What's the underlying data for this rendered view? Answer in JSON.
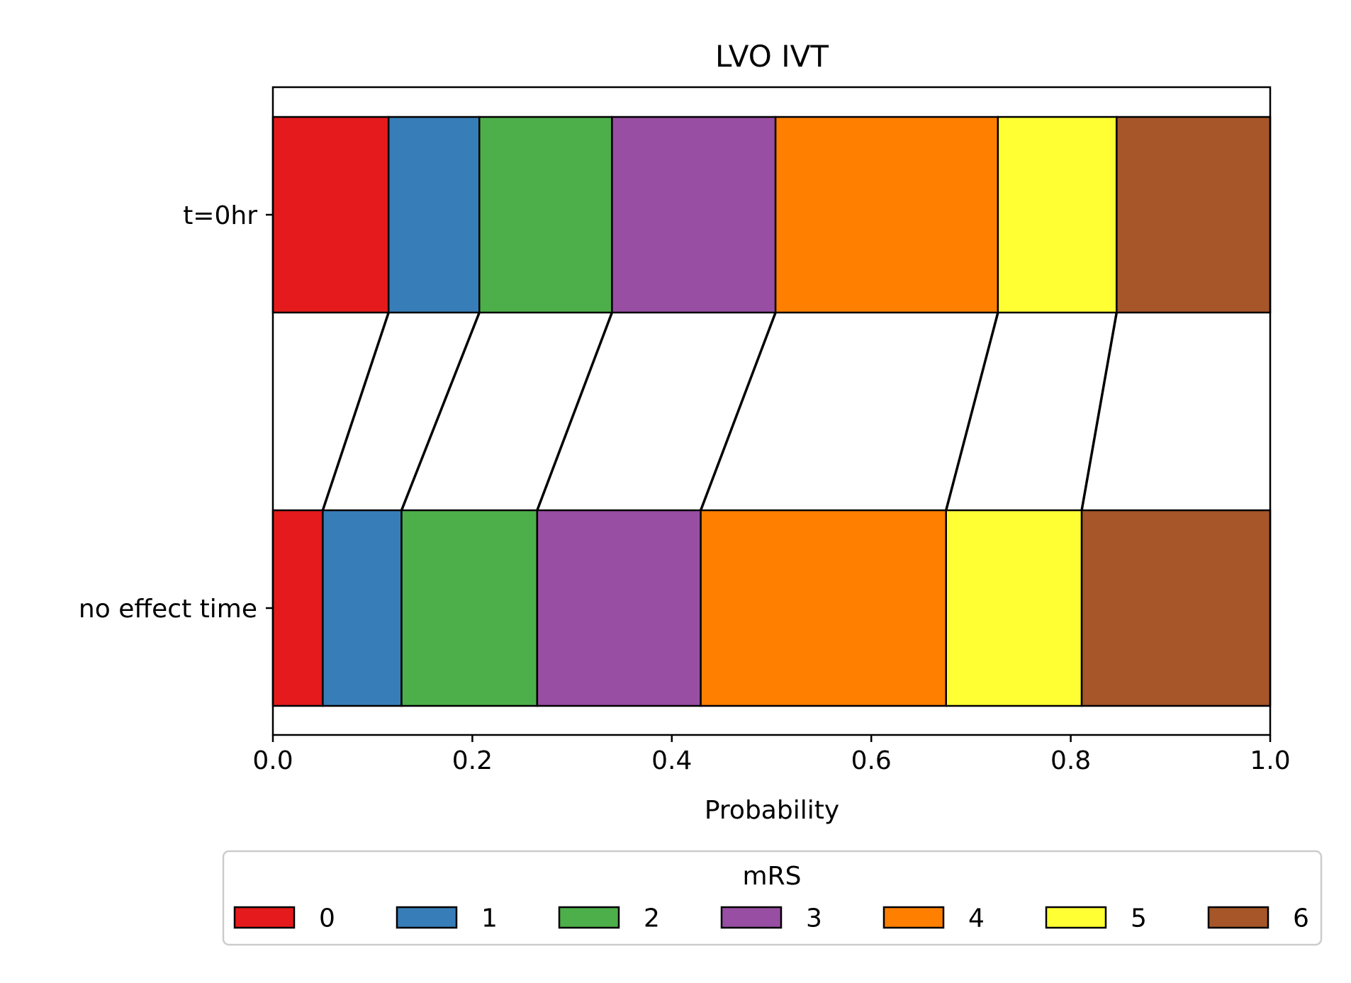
{
  "chart_data": {
    "type": "bar",
    "stacked": true,
    "orientation": "horizontal",
    "title": "LVO IVT",
    "xlabel": "Probability",
    "ylabel": "",
    "xlim": [
      0,
      1
    ],
    "xticks": [
      "0.0",
      "0.2",
      "0.4",
      "0.6",
      "0.8",
      "1.0"
    ],
    "categories": [
      "t=0hr",
      "no effect time"
    ],
    "cumulative": {
      "t=0hr": [
        0.116,
        0.207,
        0.34,
        0.504,
        0.727,
        0.846,
        1.0
      ],
      "no effect time": [
        0.05,
        0.129,
        0.265,
        0.429,
        0.675,
        0.811,
        1.0
      ]
    },
    "series": [
      {
        "name": "0",
        "color": "#e41a1c",
        "values": [
          0.116,
          0.05
        ]
      },
      {
        "name": "1",
        "color": "#377eb8",
        "values": [
          0.091,
          0.079
        ]
      },
      {
        "name": "2",
        "color": "#4daf4a",
        "values": [
          0.133,
          0.136
        ]
      },
      {
        "name": "3",
        "color": "#984ea3",
        "values": [
          0.164,
          0.164
        ]
      },
      {
        "name": "4",
        "color": "#ff7f00",
        "values": [
          0.223,
          0.246
        ]
      },
      {
        "name": "5",
        "color": "#ffff33",
        "values": [
          0.119,
          0.136
        ]
      },
      {
        "name": "6",
        "color": "#a65628",
        "values": [
          0.154,
          0.189
        ]
      }
    ],
    "connector_lines": true,
    "legend": {
      "title": "mRS",
      "position": "bottom-center",
      "ncol": 7
    },
    "grid": false
  }
}
